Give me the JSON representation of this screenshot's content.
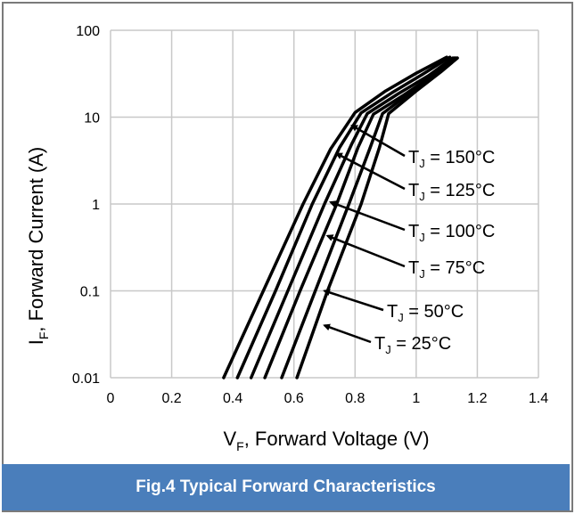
{
  "figure_caption": "Fig.4 Typical Forward Characteristics",
  "colors": {
    "caption_bg": "#4a7ebb",
    "caption_text": "#ffffff",
    "curves": "#000000",
    "grid": "#c8c8c8",
    "frame": "#7a7a7a"
  },
  "chart_data": {
    "type": "line",
    "title": "",
    "xlabel": {
      "main": "V",
      "sub": "F",
      "rest": ", Forward Voltage (V)"
    },
    "ylabel": {
      "main": "I",
      "sub": "F",
      "rest": ", Forward Current (A)"
    },
    "xlim": [
      0,
      1.4
    ],
    "ylim": [
      0.01,
      100
    ],
    "yscale": "log",
    "grid": true,
    "legend": "none",
    "x_ticks": [
      0,
      0.2,
      0.4,
      0.6,
      0.8,
      1,
      1.2,
      1.4
    ],
    "x_tick_labels": [
      "0",
      "0.2",
      "0.4",
      "0.6",
      "0.8",
      "1",
      "1.2",
      "1.4"
    ],
    "y_ticks": [
      0.01,
      0.1,
      1,
      10,
      100
    ],
    "y_tick_labels": [
      "0.01",
      "0.1",
      "1",
      "10",
      "100"
    ],
    "series": [
      {
        "name": "TJ = 150°C",
        "x": [
          0.37,
          0.5,
          0.63,
          0.72,
          0.8,
          0.9,
          1.0,
          1.1
        ],
        "y": [
          0.01,
          0.1,
          1,
          4.3,
          11.3,
          20,
          32,
          49
        ]
      },
      {
        "name": "TJ = 125°C",
        "x": [
          0.415,
          0.54,
          0.66,
          0.75,
          0.82,
          0.92,
          1.02,
          1.11
        ],
        "y": [
          0.01,
          0.1,
          1,
          4.5,
          11.2,
          19,
          31,
          49
        ]
      },
      {
        "name": "TJ = 100°C",
        "x": [
          0.46,
          0.58,
          0.7,
          0.79,
          0.84,
          0.94,
          1.04,
          1.12
        ],
        "y": [
          0.01,
          0.1,
          1,
          5,
          11,
          18.5,
          30,
          48
        ]
      },
      {
        "name": "TJ = 75°C",
        "x": [
          0.505,
          0.62,
          0.74,
          0.81,
          0.86,
          0.96,
          1.06,
          1.125
        ],
        "y": [
          0.01,
          0.1,
          1,
          4.5,
          10.8,
          18,
          31,
          48
        ]
      },
      {
        "name": "TJ = 50°C",
        "x": [
          0.56,
          0.67,
          0.78,
          0.85,
          0.89,
          0.98,
          1.07,
          1.13
        ],
        "y": [
          0.01,
          0.1,
          1,
          4.5,
          11,
          19,
          32,
          48
        ]
      },
      {
        "name": "TJ = 25°C",
        "x": [
          0.61,
          0.71,
          0.82,
          0.88,
          0.91,
          1.0,
          1.08,
          1.135
        ],
        "y": [
          0.01,
          0.1,
          1,
          4.5,
          11,
          20,
          33,
          48
        ]
      }
    ],
    "annotations": [
      {
        "prefix": "T",
        "sub": "J",
        "text": " = 150°C",
        "target_series": 0,
        "arrow_to": [
          0.79,
          8
        ]
      },
      {
        "prefix": "T",
        "sub": "J",
        "text": " = 125°C",
        "target_series": 1,
        "arrow_to": [
          0.74,
          3.8
        ]
      },
      {
        "prefix": "T",
        "sub": "J",
        "text": " = 100°C",
        "target_series": 2,
        "arrow_to": [
          0.72,
          1.05
        ]
      },
      {
        "prefix": "T",
        "sub": "J",
        "text": " = 75°C",
        "target_series": 3,
        "arrow_to": [
          0.71,
          0.43
        ]
      },
      {
        "prefix": "T",
        "sub": "J",
        "text": " = 50°C",
        "target_series": 4,
        "arrow_to": [
          0.7,
          0.1
        ]
      },
      {
        "prefix": "T",
        "sub": "J",
        "text": " = 25°C",
        "target_series": 5,
        "arrow_to": [
          0.7,
          0.04
        ]
      }
    ]
  }
}
